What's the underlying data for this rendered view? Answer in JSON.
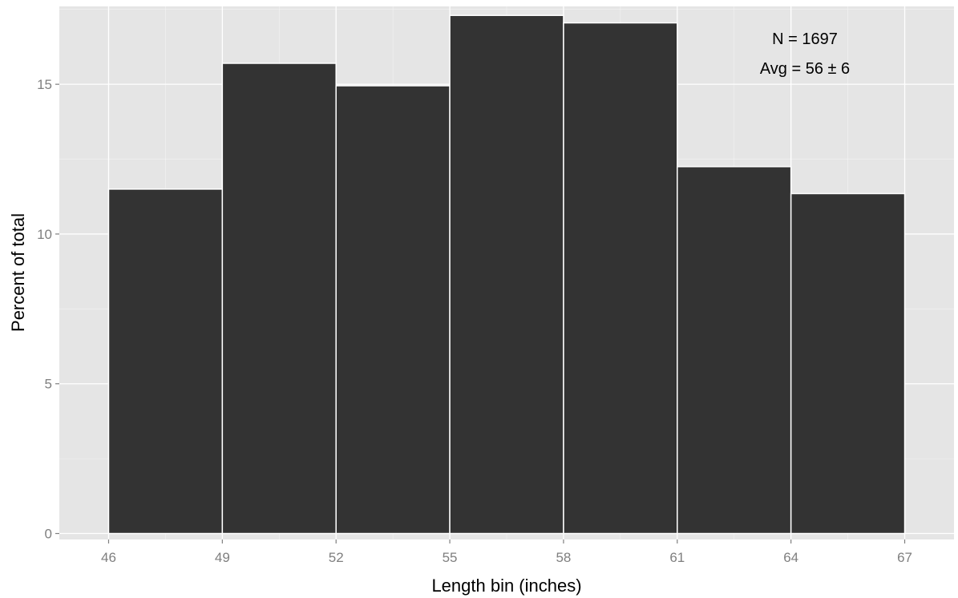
{
  "chart_data": {
    "type": "bar",
    "xlabel": "Length bin (inches)",
    "ylabel": "Percent of total",
    "bin_edges": [
      46,
      49,
      52,
      55,
      58,
      61,
      64,
      67
    ],
    "values": [
      11.5,
      15.7,
      14.95,
      17.3,
      17.05,
      12.25,
      11.35
    ],
    "x_ticks": [
      "46",
      "49",
      "52",
      "55",
      "58",
      "61",
      "64",
      "67"
    ],
    "y_ticks": [
      "0",
      "5",
      "10",
      "15"
    ],
    "xlim": [
      44.7,
      68.3
    ],
    "ylim": [
      -0.2,
      17.6
    ],
    "grid": true,
    "annotations": [
      "N = 1697",
      "Avg = 56 ± 6"
    ],
    "colors": {
      "panel": "#e5e5e5",
      "bar": "#333333",
      "bar_edge": "#ffffff",
      "grid": "#ffffff",
      "tick_text": "#7f7f7f"
    }
  }
}
